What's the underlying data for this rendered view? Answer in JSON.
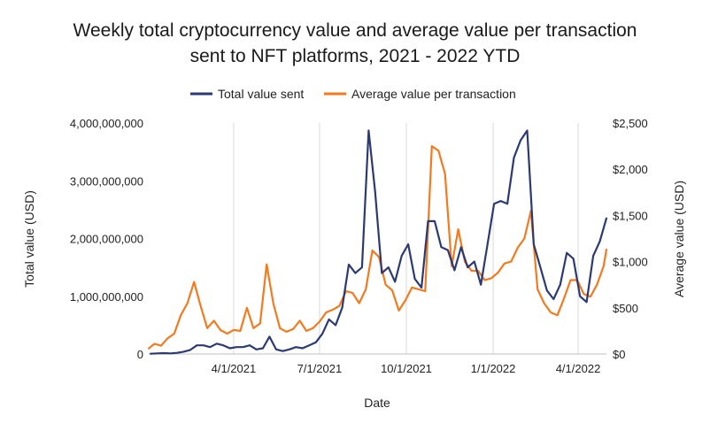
{
  "chart_data": {
    "type": "line",
    "title_lines": [
      "Weekly total cryptocurrency value and average value per transaction",
      "sent to NFT platforms, 2021 - 2022 YTD"
    ],
    "xlabel": "Date",
    "ylabel_left": "Total value (USD)",
    "ylabel_right": "Average value (USD)",
    "x_start": "2021-01-01",
    "x_end": "2022-05-01",
    "x_ticks": [
      "2021-04-01",
      "2021-07-01",
      "2021-10-01",
      "2022-01-01",
      "2022-04-01"
    ],
    "x_tick_labels": [
      "4/1/2021",
      "7/1/2021",
      "10/1/2021",
      "1/1/2022",
      "4/1/2022"
    ],
    "ylim_left": [
      0,
      4000000000
    ],
    "y_ticks_left": [
      0,
      1000000000,
      2000000000,
      3000000000,
      4000000000
    ],
    "y_tick_labels_left": [
      "0",
      "1,000,000,000",
      "2,000,000,000",
      "3,000,000,000",
      "4,000,000,000"
    ],
    "ylim_right": [
      0,
      2500
    ],
    "y_ticks_right": [
      0,
      500,
      1000,
      1500,
      2000,
      2500
    ],
    "y_tick_labels_right": [
      "$0",
      "$500",
      "$1,000",
      "$1,500",
      "$2,000",
      "$2,500"
    ],
    "grid": "vertical",
    "legend": "top-center",
    "series": [
      {
        "name": "Total value sent",
        "axis": "left",
        "color": "#2b3a73",
        "x": [
          "2021-01-03",
          "2021-01-10",
          "2021-01-17",
          "2021-01-24",
          "2021-01-31",
          "2021-02-07",
          "2021-02-14",
          "2021-02-21",
          "2021-02-28",
          "2021-03-07",
          "2021-03-14",
          "2021-03-21",
          "2021-03-28",
          "2021-04-04",
          "2021-04-11",
          "2021-04-18",
          "2021-04-25",
          "2021-05-02",
          "2021-05-09",
          "2021-05-16",
          "2021-05-23",
          "2021-05-30",
          "2021-06-06",
          "2021-06-13",
          "2021-06-20",
          "2021-06-27",
          "2021-07-04",
          "2021-07-11",
          "2021-07-18",
          "2021-07-25",
          "2021-08-01",
          "2021-08-08",
          "2021-08-15",
          "2021-08-22",
          "2021-08-29",
          "2021-09-05",
          "2021-09-12",
          "2021-09-19",
          "2021-09-26",
          "2021-10-03",
          "2021-10-10",
          "2021-10-17",
          "2021-10-24",
          "2021-10-31",
          "2021-11-07",
          "2021-11-14",
          "2021-11-21",
          "2021-11-28",
          "2021-12-05",
          "2021-12-12",
          "2021-12-19",
          "2021-12-26",
          "2022-01-02",
          "2022-01-09",
          "2022-01-16",
          "2022-01-23",
          "2022-01-30",
          "2022-02-06",
          "2022-02-13",
          "2022-02-20",
          "2022-02-27",
          "2022-03-06",
          "2022-03-13",
          "2022-03-20",
          "2022-03-27",
          "2022-04-03",
          "2022-04-10",
          "2022-04-17",
          "2022-04-24",
          "2022-05-01"
        ],
        "values": [
          5000000,
          10000000,
          15000000,
          10000000,
          20000000,
          40000000,
          70000000,
          150000000,
          150000000,
          120000000,
          180000000,
          150000000,
          100000000,
          120000000,
          120000000,
          150000000,
          80000000,
          100000000,
          300000000,
          80000000,
          50000000,
          80000000,
          120000000,
          100000000,
          150000000,
          200000000,
          350000000,
          600000000,
          500000000,
          800000000,
          1550000000,
          1400000000,
          1500000000,
          3870000000,
          2800000000,
          1400000000,
          1500000000,
          1250000000,
          1700000000,
          1900000000,
          1300000000,
          1150000000,
          2300000000,
          2300000000,
          1850000000,
          1800000000,
          1450000000,
          1850000000,
          1500000000,
          1600000000,
          1200000000,
          1900000000,
          2600000000,
          2650000000,
          2600000000,
          3400000000,
          3700000000,
          3870000000,
          1900000000,
          1500000000,
          1100000000,
          950000000,
          1200000000,
          1750000000,
          1650000000,
          1000000000,
          900000000,
          1700000000,
          1950000000,
          2350000000
        ]
      },
      {
        "name": "Average value per transaction",
        "axis": "right",
        "color": "#f47a20",
        "x": [
          "2021-01-01",
          "2021-01-07",
          "2021-01-14",
          "2021-01-21",
          "2021-01-28",
          "2021-02-04",
          "2021-02-11",
          "2021-02-18",
          "2021-02-25",
          "2021-03-04",
          "2021-03-11",
          "2021-03-18",
          "2021-03-25",
          "2021-04-01",
          "2021-04-08",
          "2021-04-15",
          "2021-04-22",
          "2021-04-29",
          "2021-05-06",
          "2021-05-13",
          "2021-05-20",
          "2021-05-27",
          "2021-06-03",
          "2021-06-10",
          "2021-06-17",
          "2021-06-24",
          "2021-07-01",
          "2021-07-08",
          "2021-07-15",
          "2021-07-22",
          "2021-07-29",
          "2021-08-05",
          "2021-08-12",
          "2021-08-19",
          "2021-08-26",
          "2021-09-02",
          "2021-09-09",
          "2021-09-16",
          "2021-09-23",
          "2021-09-30",
          "2021-10-07",
          "2021-10-14",
          "2021-10-21",
          "2021-10-28",
          "2021-11-04",
          "2021-11-11",
          "2021-11-18",
          "2021-11-25",
          "2021-12-02",
          "2021-12-09",
          "2021-12-16",
          "2021-12-23",
          "2021-12-30",
          "2022-01-06",
          "2022-01-13",
          "2022-01-20",
          "2022-01-27",
          "2022-02-03",
          "2022-02-10",
          "2022-02-17",
          "2022-02-24",
          "2022-03-03",
          "2022-03-10",
          "2022-03-17",
          "2022-03-24",
          "2022-03-31",
          "2022-04-07",
          "2022-04-14",
          "2022-04-21",
          "2022-04-28",
          "2022-05-01"
        ],
        "values": [
          60,
          110,
          90,
          170,
          220,
          420,
          550,
          780,
          520,
          280,
          360,
          260,
          220,
          260,
          250,
          500,
          280,
          330,
          970,
          550,
          280,
          240,
          270,
          360,
          250,
          280,
          350,
          450,
          480,
          520,
          680,
          660,
          550,
          700,
          1120,
          1050,
          750,
          690,
          470,
          580,
          720,
          700,
          680,
          2250,
          2200,
          1950,
          950,
          1350,
          1000,
          900,
          900,
          800,
          820,
          880,
          980,
          1000,
          1150,
          1250,
          1550,
          700,
          550,
          450,
          420,
          600,
          800,
          800,
          650,
          620,
          750,
          950,
          1130
        ]
      }
    ]
  }
}
